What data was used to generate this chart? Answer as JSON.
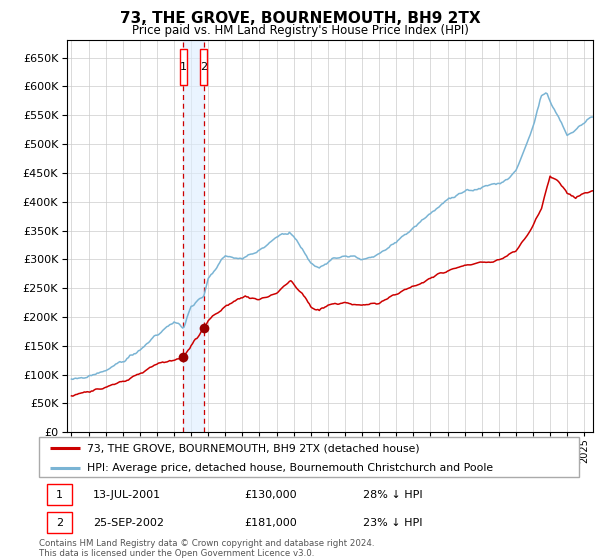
{
  "title": "73, THE GROVE, BOURNEMOUTH, BH9 2TX",
  "subtitle": "Price paid vs. HM Land Registry's House Price Index (HPI)",
  "legend_line1": "73, THE GROVE, BOURNEMOUTH, BH9 2TX (detached house)",
  "legend_line2": "HPI: Average price, detached house, Bournemouth Christchurch and Poole",
  "footer1": "Contains HM Land Registry data © Crown copyright and database right 2024.",
  "footer2": "This data is licensed under the Open Government Licence v3.0.",
  "transaction1_date": "13-JUL-2001",
  "transaction1_price": "£130,000",
  "transaction1_hpi": "28% ↓ HPI",
  "transaction2_date": "25-SEP-2002",
  "transaction2_price": "£181,000",
  "transaction2_hpi": "23% ↓ HPI",
  "hpi_color": "#7ab4d4",
  "price_color": "#cc0000",
  "marker_color": "#990000",
  "vline_color": "#cc0000",
  "grid_color": "#cccccc",
  "bg_color": "#ffffff",
  "ylim": [
    0,
    680000
  ],
  "ytick_vals": [
    0,
    50000,
    100000,
    150000,
    200000,
    250000,
    300000,
    350000,
    400000,
    450000,
    500000,
    550000,
    600000,
    650000
  ],
  "xlim_start": 1994.75,
  "xlim_end": 2025.5,
  "transaction1_x": 2001.54,
  "transaction1_y": 130000,
  "transaction2_x": 2002.73,
  "transaction2_y": 181000,
  "hpi_anchors_x": [
    1995.0,
    1996.0,
    1997.0,
    1998.0,
    1999.0,
    2000.0,
    2001.0,
    2001.54,
    2002.0,
    2002.73,
    2003.0,
    2004.0,
    2005.0,
    2006.0,
    2007.0,
    2007.8,
    2008.5,
    2009.0,
    2009.5,
    2010.0,
    2011.0,
    2012.0,
    2013.0,
    2014.0,
    2015.0,
    2016.0,
    2017.0,
    2018.0,
    2019.0,
    2019.5,
    2020.0,
    2020.5,
    2021.0,
    2021.5,
    2022.0,
    2022.5,
    2022.8,
    2023.0,
    2023.5,
    2024.0,
    2024.5,
    2025.0,
    2025.5
  ],
  "hpi_anchors_y": [
    90000,
    97000,
    108000,
    123000,
    143000,
    168000,
    193000,
    180000,
    220000,
    235000,
    265000,
    305000,
    300000,
    315000,
    340000,
    348000,
    318000,
    293000,
    285000,
    298000,
    308000,
    300000,
    308000,
    330000,
    355000,
    380000,
    403000,
    415000,
    425000,
    430000,
    433000,
    438000,
    455000,
    490000,
    530000,
    583000,
    590000,
    573000,
    545000,
    515000,
    525000,
    538000,
    548000
  ],
  "red_anchors_x": [
    1995.0,
    1996.0,
    1997.0,
    1998.0,
    1999.0,
    2000.0,
    2001.0,
    2001.54,
    2002.0,
    2002.73,
    2003.0,
    2004.0,
    2004.5,
    2005.0,
    2006.0,
    2007.0,
    2007.8,
    2008.5,
    2009.0,
    2009.5,
    2010.0,
    2011.0,
    2012.0,
    2013.0,
    2014.0,
    2015.0,
    2016.0,
    2017.0,
    2018.0,
    2019.0,
    2020.0,
    2021.0,
    2021.5,
    2022.0,
    2022.5,
    2023.0,
    2023.5,
    2024.0,
    2024.5,
    2025.0,
    2025.5
  ],
  "red_anchors_y": [
    65000,
    70000,
    78000,
    88000,
    102000,
    118000,
    125000,
    130000,
    150000,
    181000,
    195000,
    218000,
    228000,
    233000,
    230000,
    242000,
    263000,
    240000,
    220000,
    212000,
    220000,
    225000,
    220000,
    225000,
    240000,
    253000,
    268000,
    280000,
    290000,
    295000,
    298000,
    315000,
    335000,
    358000,
    390000,
    445000,
    435000,
    415000,
    408000,
    415000,
    418000
  ]
}
